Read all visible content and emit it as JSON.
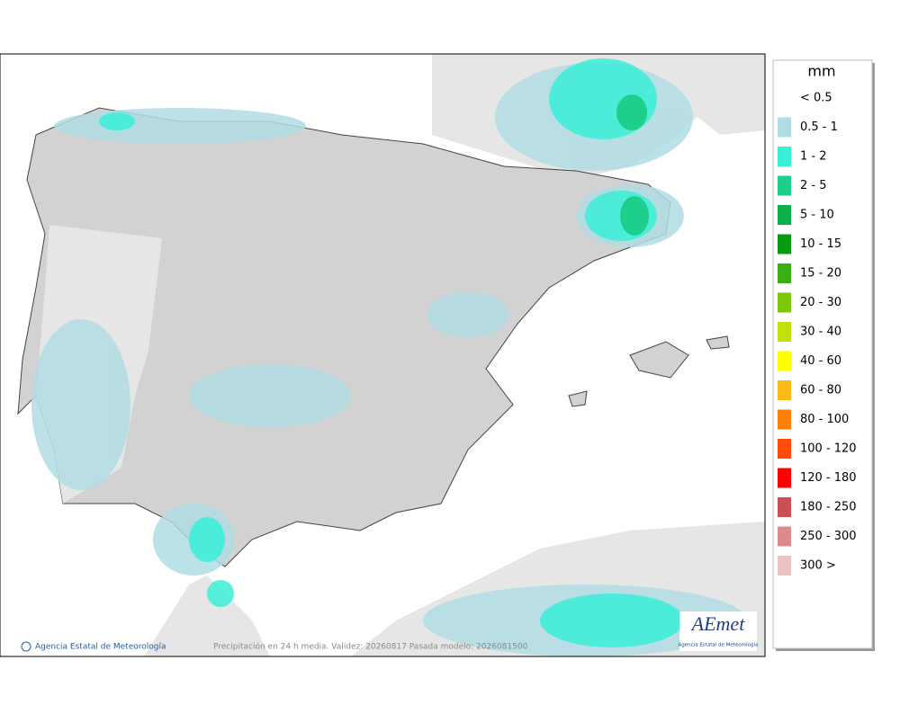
{
  "legend": {
    "unit": "mm",
    "items": [
      {
        "label": "< 0.5"
      },
      {
        "label": "0.5 - 1",
        "color": "#b0dde4"
      },
      {
        "label": "1 - 2",
        "color": "#3aefd8"
      },
      {
        "label": "2 - 5",
        "color": "#1ccf8a"
      },
      {
        "label": "5 - 10",
        "color": "#0bb04b"
      },
      {
        "label": "10 - 15",
        "color": "#089a10"
      },
      {
        "label": "15 - 20",
        "color": "#3caf16"
      },
      {
        "label": "20 - 30",
        "color": "#7cc808"
      },
      {
        "label": "30 - 40",
        "color": "#c2e00c"
      },
      {
        "label": "40 - 60",
        "color": "#ffff00"
      },
      {
        "label": "60 - 80",
        "color": "#fdb915"
      },
      {
        "label": "80 - 100",
        "color": "#ff8009"
      },
      {
        "label": "100 - 120",
        "color": "#ff4a0a"
      },
      {
        "label": "120 - 180",
        "color": "#ff0000"
      },
      {
        "label": "180 - 250",
        "color": "#c84f55"
      },
      {
        "label": "250 - 300",
        "color": "#dc8b8d"
      },
      {
        "label": "300 >",
        "color": "#ecc3c4"
      }
    ]
  },
  "footer": {
    "credit": "Agencia Estatal de Meteorología",
    "caption": "Precipitación en 24 h media. Validez: 20260817 Pasada modelo: 2026081500"
  },
  "logo": {
    "name": "AEmet",
    "subtitle": "Agencia Estatal de Meteorología"
  }
}
